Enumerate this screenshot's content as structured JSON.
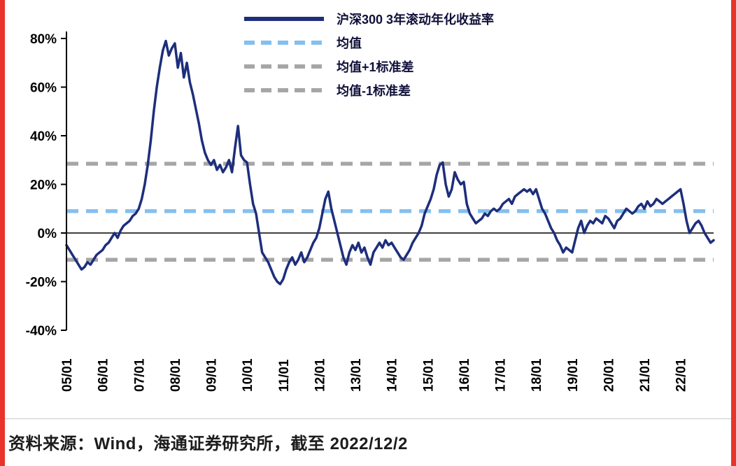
{
  "page": {
    "caption": "资料来源：Wind，海通证券研究所，截至 2022/12/2",
    "accent_red": "#e8342a",
    "divider_color": "#c9c9c9"
  },
  "chart_data": {
    "type": "line",
    "title": "沪深300 3年滚动年化收益率",
    "legend": [
      {
        "label": "沪深300 3年滚动年化收益率",
        "color": "#1d2e7b",
        "style": "solid"
      },
      {
        "label": "均值",
        "color": "#85bfee",
        "style": "dashed"
      },
      {
        "label": "均值+1标准差",
        "color": "#a6a6a6",
        "style": "dashed"
      },
      {
        "label": "均值-1标准差",
        "color": "#a6a6a6",
        "style": "dashed"
      }
    ],
    "ylim": [
      -40,
      80
    ],
    "y_ticks": [
      {
        "v": 80,
        "label": "80%"
      },
      {
        "v": 60,
        "label": "60%"
      },
      {
        "v": 40,
        "label": "40%"
      },
      {
        "v": 20,
        "label": "20%"
      },
      {
        "v": 0,
        "label": "0%"
      },
      {
        "v": -20,
        "label": "-20%"
      },
      {
        "v": -40,
        "label": "-40%"
      }
    ],
    "x_tick_labels": [
      "05/01",
      "06/01",
      "07/01",
      "08/01",
      "09/01",
      "10/01",
      "11/01",
      "12/01",
      "13/01",
      "14/01",
      "15/01",
      "16/01",
      "17/01",
      "18/01",
      "19/01",
      "20/01",
      "21/01",
      "22/01"
    ],
    "x_range": {
      "start": "2005-01",
      "end": "2022-12",
      "frequency": "monthly"
    },
    "reference_lines": {
      "mean": 9,
      "mean_plus_1sd": 28.5,
      "mean_minus_1sd": -11
    },
    "axis_color": "#000000",
    "grid": false,
    "legend_position": "top-center",
    "series": [
      {
        "name": "沪深300 3年滚动年化收益率",
        "color": "#1d2e7b",
        "values": [
          -5,
          -7,
          -9,
          -11,
          -13,
          -15,
          -14,
          -12,
          -13,
          -11,
          -9,
          -8,
          -7,
          -5,
          -4,
          -2,
          0,
          -2,
          1,
          3,
          4,
          5,
          7,
          8,
          10,
          14,
          20,
          28,
          38,
          50,
          60,
          68,
          75,
          79,
          73,
          76,
          78,
          68,
          74,
          64,
          70,
          62,
          57,
          51,
          45,
          38,
          33,
          30,
          28,
          30,
          26,
          28,
          25,
          27,
          30,
          25,
          35,
          44,
          32,
          30,
          29,
          20,
          12,
          8,
          0,
          -8,
          -10,
          -12,
          -15,
          -18,
          -20,
          -21,
          -19,
          -15,
          -12,
          -10,
          -13,
          -11,
          -8,
          -12,
          -10,
          -7,
          -4,
          -2,
          2,
          8,
          14,
          17,
          10,
          5,
          0,
          -5,
          -10,
          -13,
          -8,
          -5,
          -7,
          -4,
          -8,
          -6,
          -10,
          -13,
          -8,
          -6,
          -4,
          -6,
          -3,
          -5,
          -4,
          -6,
          -8,
          -10,
          -11,
          -9,
          -7,
          -4,
          -2,
          0,
          3,
          8,
          11,
          14,
          18,
          24,
          28,
          29,
          20,
          15,
          18,
          25,
          22,
          20,
          21,
          12,
          8,
          6,
          4,
          5,
          6,
          8,
          7,
          9,
          10,
          9,
          10,
          12,
          13,
          14,
          12,
          15,
          16,
          17,
          18,
          17,
          18,
          16,
          18,
          14,
          10,
          8,
          5,
          2,
          0,
          -3,
          -5,
          -8,
          -6,
          -7,
          -8,
          -3,
          2,
          5,
          0,
          3,
          5,
          4,
          6,
          5,
          4,
          7,
          6,
          4,
          2,
          5,
          6,
          8,
          10,
          9,
          8,
          9,
          11,
          12,
          10,
          13,
          11,
          12,
          14,
          13,
          12,
          13,
          14,
          15,
          16,
          17,
          18,
          12,
          5,
          0,
          2,
          4,
          5,
          3,
          0,
          -2,
          -4,
          -3
        ]
      }
    ]
  }
}
